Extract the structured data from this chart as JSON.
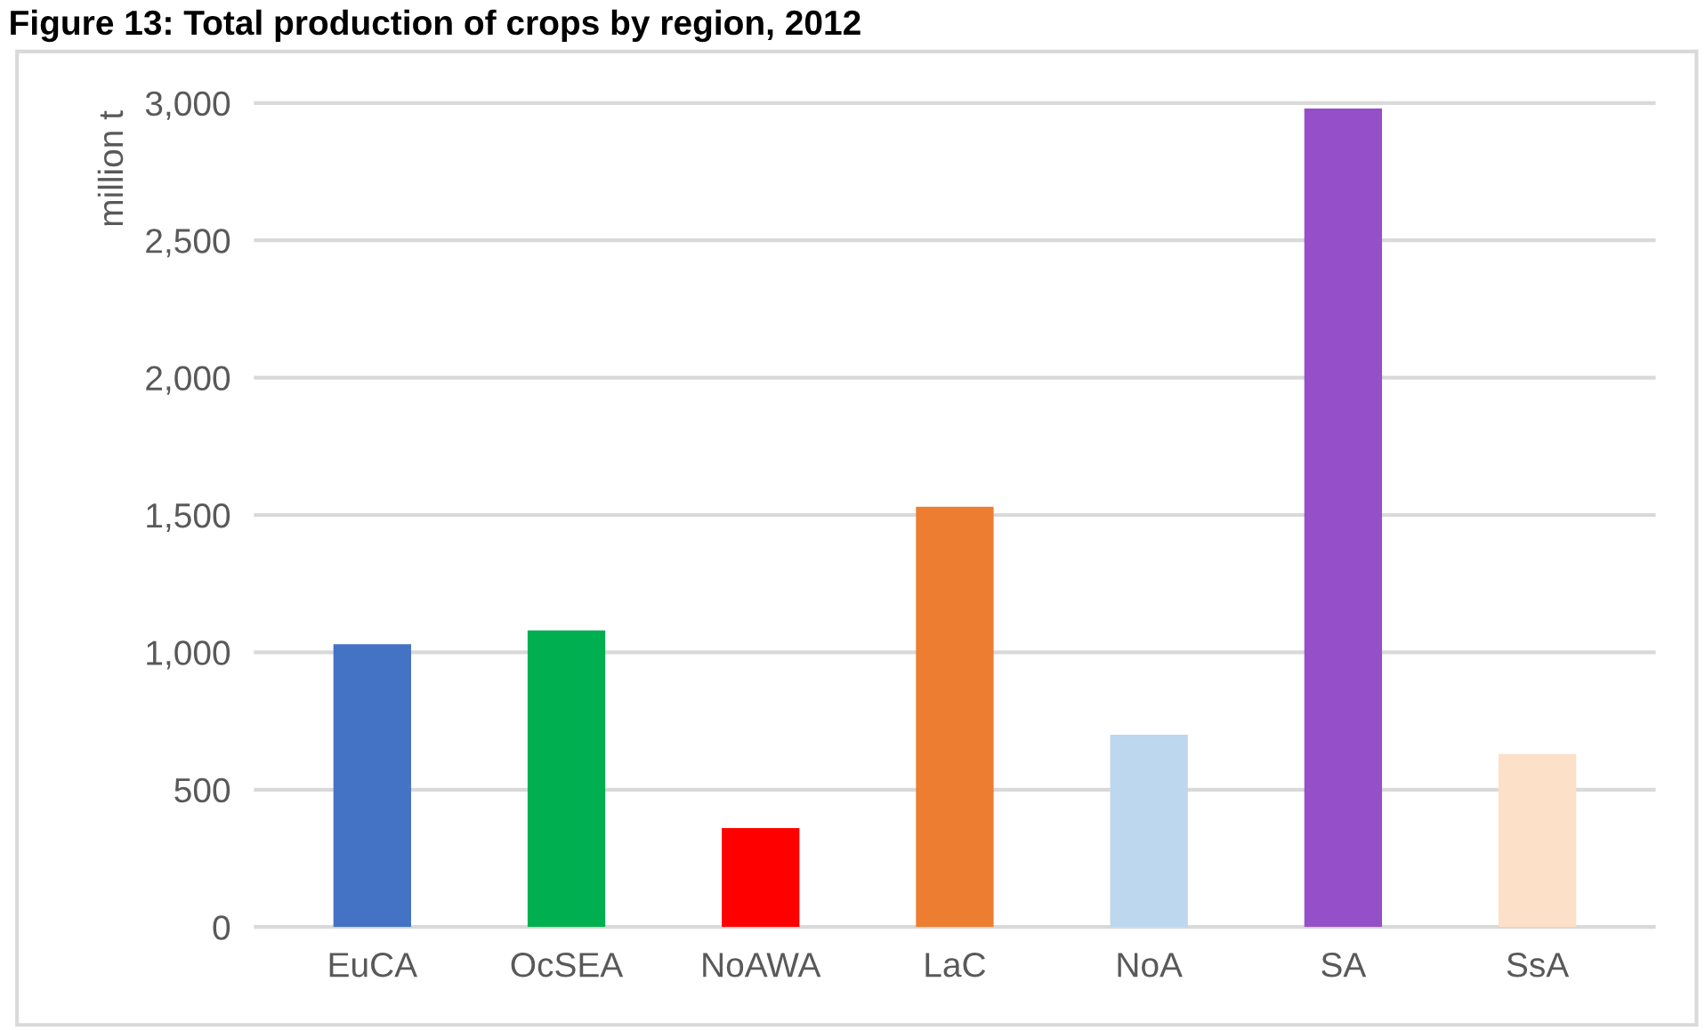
{
  "chart_data": {
    "type": "bar",
    "title": "Figure 13: Total production of crops by region, 2012",
    "ylabel": "million t",
    "categories": [
      "EuCA",
      "OcSEA",
      "NoAWA",
      "LaC",
      "NoA",
      "SA",
      "SsA"
    ],
    "values": [
      1030,
      1080,
      360,
      1530,
      700,
      2980,
      630
    ],
    "colors": [
      "#4472c4",
      "#00b050",
      "#ff0000",
      "#ed7d31",
      "#bdd7ee",
      "#954fc8",
      "#fce0c8"
    ],
    "ylim": [
      0,
      3000
    ],
    "yticks": [
      {
        "value": 0,
        "label": "0"
      },
      {
        "value": 500,
        "label": "500"
      },
      {
        "value": 1000,
        "label": "1,000"
      },
      {
        "value": 1500,
        "label": "1,500"
      },
      {
        "value": 2000,
        "label": "2,000"
      },
      {
        "value": 2500,
        "label": "2,500"
      },
      {
        "value": 3000,
        "label": "3,000"
      }
    ],
    "grid": "y"
  }
}
